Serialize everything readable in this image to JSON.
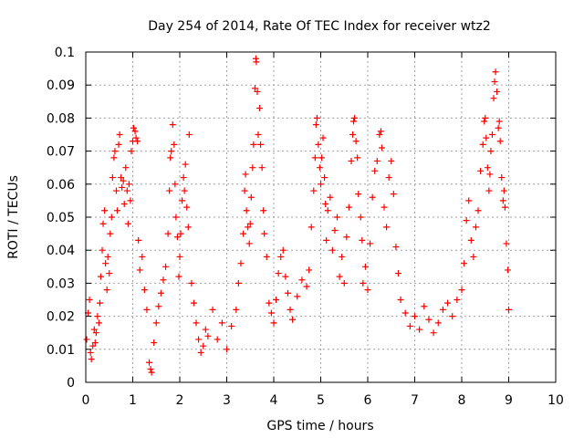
{
  "chart_data": {
    "type": "scatter",
    "title": "Day 254 of 2014, Rate Of TEC Index for receiver wtz2",
    "xlabel": "GPS time / hours",
    "ylabel": "ROTI / TECUs",
    "xlim": [
      0,
      10
    ],
    "ylim": [
      0,
      0.1
    ],
    "xticks": [
      0,
      1,
      2,
      3,
      4,
      5,
      6,
      7,
      8,
      9,
      10
    ],
    "yticks": [
      0,
      0.01,
      0.02,
      0.03,
      0.04,
      0.05,
      0.06,
      0.07,
      0.08,
      0.09,
      0.1
    ],
    "xtick_labels": [
      "0",
      "1",
      "2",
      "3",
      "4",
      "5",
      "6",
      "7",
      "8",
      "9",
      "10"
    ],
    "ytick_labels": [
      "0",
      "0.01",
      "0.02",
      "0.03",
      "0.04",
      "0.05",
      "0.06",
      "0.07",
      "0.08",
      "0.09",
      "0.1"
    ],
    "grid": true,
    "marker": "+",
    "marker_color": "#ff0000",
    "series": [
      {
        "name": "ROTI",
        "points": [
          [
            0.02,
            0.013
          ],
          [
            0.05,
            0.021
          ],
          [
            0.08,
            0.025
          ],
          [
            0.1,
            0.009
          ],
          [
            0.12,
            0.007
          ],
          [
            0.15,
            0.011
          ],
          [
            0.18,
            0.016
          ],
          [
            0.2,
            0.012
          ],
          [
            0.22,
            0.015
          ],
          [
            0.25,
            0.02
          ],
          [
            0.28,
            0.018
          ],
          [
            0.3,
            0.024
          ],
          [
            0.32,
            0.032
          ],
          [
            0.35,
            0.04
          ],
          [
            0.37,
            0.048
          ],
          [
            0.4,
            0.052
          ],
          [
            0.42,
            0.036
          ],
          [
            0.45,
            0.028
          ],
          [
            0.47,
            0.038
          ],
          [
            0.5,
            0.033
          ],
          [
            0.52,
            0.045
          ],
          [
            0.55,
            0.05
          ],
          [
            0.57,
            0.062
          ],
          [
            0.6,
            0.068
          ],
          [
            0.62,
            0.07
          ],
          [
            0.65,
            0.058
          ],
          [
            0.67,
            0.052
          ],
          [
            0.7,
            0.072
          ],
          [
            0.72,
            0.075
          ],
          [
            0.75,
            0.062
          ],
          [
            0.77,
            0.059
          ],
          [
            0.8,
            0.061
          ],
          [
            0.82,
            0.054
          ],
          [
            0.85,
            0.065
          ],
          [
            0.88,
            0.058
          ],
          [
            0.9,
            0.048
          ],
          [
            0.92,
            0.06
          ],
          [
            0.95,
            0.055
          ],
          [
            0.97,
            0.07
          ],
          [
            1.0,
            0.073
          ],
          [
            1.02,
            0.077
          ],
          [
            1.05,
            0.076
          ],
          [
            1.07,
            0.074
          ],
          [
            1.1,
            0.073
          ],
          [
            1.12,
            0.043
          ],
          [
            1.15,
            0.034
          ],
          [
            1.2,
            0.038
          ],
          [
            1.25,
            0.028
          ],
          [
            1.3,
            0.022
          ],
          [
            1.35,
            0.006
          ],
          [
            1.38,
            0.004
          ],
          [
            1.4,
            0.003
          ],
          [
            1.45,
            0.012
          ],
          [
            1.5,
            0.018
          ],
          [
            1.55,
            0.023
          ],
          [
            1.6,
            0.027
          ],
          [
            1.65,
            0.031
          ],
          [
            1.7,
            0.035
          ],
          [
            1.75,
            0.045
          ],
          [
            1.78,
            0.058
          ],
          [
            1.8,
            0.068
          ],
          [
            1.82,
            0.07
          ],
          [
            1.85,
            0.078
          ],
          [
            1.88,
            0.072
          ],
          [
            1.9,
            0.06
          ],
          [
            1.92,
            0.05
          ],
          [
            1.95,
            0.044
          ],
          [
            1.98,
            0.032
          ],
          [
            2.0,
            0.038
          ],
          [
            2.02,
            0.045
          ],
          [
            2.05,
            0.055
          ],
          [
            2.08,
            0.062
          ],
          [
            2.1,
            0.058
          ],
          [
            2.12,
            0.066
          ],
          [
            2.15,
            0.053
          ],
          [
            2.18,
            0.047
          ],
          [
            2.2,
            0.075
          ],
          [
            2.25,
            0.03
          ],
          [
            2.3,
            0.024
          ],
          [
            2.35,
            0.018
          ],
          [
            2.4,
            0.013
          ],
          [
            2.45,
            0.009
          ],
          [
            2.5,
            0.011
          ],
          [
            2.55,
            0.016
          ],
          [
            2.6,
            0.014
          ],
          [
            2.7,
            0.022
          ],
          [
            2.8,
            0.013
          ],
          [
            2.9,
            0.018
          ],
          [
            3.0,
            0.01
          ],
          [
            3.1,
            0.017
          ],
          [
            3.2,
            0.022
          ],
          [
            3.25,
            0.03
          ],
          [
            3.3,
            0.036
          ],
          [
            3.35,
            0.045
          ],
          [
            3.38,
            0.058
          ],
          [
            3.4,
            0.063
          ],
          [
            3.42,
            0.052
          ],
          [
            3.45,
            0.047
          ],
          [
            3.48,
            0.042
          ],
          [
            3.5,
            0.048
          ],
          [
            3.52,
            0.056
          ],
          [
            3.55,
            0.065
          ],
          [
            3.57,
            0.072
          ],
          [
            3.6,
            0.089
          ],
          [
            3.62,
            0.098
          ],
          [
            3.63,
            0.097
          ],
          [
            3.65,
            0.088
          ],
          [
            3.67,
            0.075
          ],
          [
            3.7,
            0.083
          ],
          [
            3.72,
            0.072
          ],
          [
            3.75,
            0.065
          ],
          [
            3.78,
            0.052
          ],
          [
            3.8,
            0.045
          ],
          [
            3.85,
            0.038
          ],
          [
            3.9,
            0.024
          ],
          [
            3.95,
            0.021
          ],
          [
            4.0,
            0.018
          ],
          [
            4.05,
            0.025
          ],
          [
            4.1,
            0.033
          ],
          [
            4.15,
            0.038
          ],
          [
            4.2,
            0.04
          ],
          [
            4.25,
            0.032
          ],
          [
            4.3,
            0.027
          ],
          [
            4.35,
            0.022
          ],
          [
            4.4,
            0.019
          ],
          [
            4.5,
            0.026
          ],
          [
            4.6,
            0.031
          ],
          [
            4.7,
            0.029
          ],
          [
            4.75,
            0.034
          ],
          [
            4.8,
            0.047
          ],
          [
            4.85,
            0.058
          ],
          [
            4.88,
            0.068
          ],
          [
            4.9,
            0.078
          ],
          [
            4.92,
            0.08
          ],
          [
            4.95,
            0.072
          ],
          [
            4.98,
            0.065
          ],
          [
            5.0,
            0.06
          ],
          [
            5.02,
            0.068
          ],
          [
            5.05,
            0.074
          ],
          [
            5.08,
            0.062
          ],
          [
            5.1,
            0.054
          ],
          [
            5.12,
            0.043
          ],
          [
            5.15,
            0.052
          ],
          [
            5.2,
            0.056
          ],
          [
            5.25,
            0.04
          ],
          [
            5.3,
            0.046
          ],
          [
            5.35,
            0.05
          ],
          [
            5.4,
            0.032
          ],
          [
            5.45,
            0.038
          ],
          [
            5.5,
            0.03
          ],
          [
            5.55,
            0.044
          ],
          [
            5.6,
            0.053
          ],
          [
            5.65,
            0.067
          ],
          [
            5.68,
            0.075
          ],
          [
            5.7,
            0.079
          ],
          [
            5.72,
            0.08
          ],
          [
            5.75,
            0.073
          ],
          [
            5.78,
            0.068
          ],
          [
            5.8,
            0.057
          ],
          [
            5.85,
            0.05
          ],
          [
            5.88,
            0.043
          ],
          [
            5.9,
            0.03
          ],
          [
            5.95,
            0.035
          ],
          [
            6.0,
            0.028
          ],
          [
            6.05,
            0.042
          ],
          [
            6.1,
            0.056
          ],
          [
            6.15,
            0.064
          ],
          [
            6.2,
            0.067
          ],
          [
            6.25,
            0.075
          ],
          [
            6.28,
            0.076
          ],
          [
            6.3,
            0.071
          ],
          [
            6.35,
            0.053
          ],
          [
            6.4,
            0.047
          ],
          [
            6.45,
            0.062
          ],
          [
            6.5,
            0.067
          ],
          [
            6.55,
            0.057
          ],
          [
            6.6,
            0.041
          ],
          [
            6.65,
            0.033
          ],
          [
            6.7,
            0.025
          ],
          [
            6.8,
            0.021
          ],
          [
            6.9,
            0.017
          ],
          [
            7.0,
            0.02
          ],
          [
            7.1,
            0.016
          ],
          [
            7.2,
            0.023
          ],
          [
            7.3,
            0.019
          ],
          [
            7.4,
            0.015
          ],
          [
            7.5,
            0.018
          ],
          [
            7.6,
            0.022
          ],
          [
            7.7,
            0.024
          ],
          [
            7.8,
            0.02
          ],
          [
            7.9,
            0.025
          ],
          [
            8.0,
            0.028
          ],
          [
            8.05,
            0.036
          ],
          [
            8.1,
            0.049
          ],
          [
            8.15,
            0.055
          ],
          [
            8.2,
            0.043
          ],
          [
            8.25,
            0.038
          ],
          [
            8.3,
            0.047
          ],
          [
            8.35,
            0.052
          ],
          [
            8.4,
            0.064
          ],
          [
            8.45,
            0.072
          ],
          [
            8.48,
            0.079
          ],
          [
            8.5,
            0.08
          ],
          [
            8.52,
            0.074
          ],
          [
            8.55,
            0.065
          ],
          [
            8.58,
            0.058
          ],
          [
            8.6,
            0.063
          ],
          [
            8.62,
            0.07
          ],
          [
            8.65,
            0.075
          ],
          [
            8.68,
            0.086
          ],
          [
            8.7,
            0.091
          ],
          [
            8.72,
            0.094
          ],
          [
            8.75,
            0.088
          ],
          [
            8.78,
            0.077
          ],
          [
            8.8,
            0.079
          ],
          [
            8.82,
            0.073
          ],
          [
            8.85,
            0.062
          ],
          [
            8.88,
            0.055
          ],
          [
            8.9,
            0.058
          ],
          [
            8.92,
            0.053
          ],
          [
            8.95,
            0.042
          ],
          [
            8.98,
            0.034
          ],
          [
            9.0,
            0.022
          ]
        ]
      }
    ]
  }
}
